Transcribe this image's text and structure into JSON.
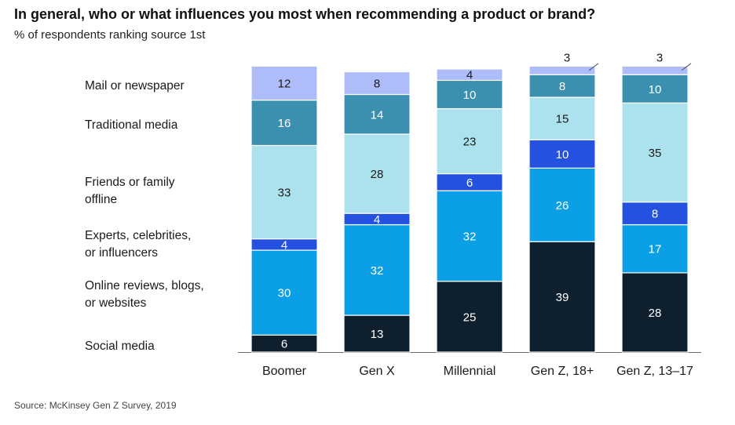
{
  "title": "In general, who or what influences you most when recommending a product or brand?",
  "subtitle": "% of respondents ranking source 1st",
  "source": "Source: McKinsey Gen Z Survey, 2019",
  "chart_data": {
    "type": "bar",
    "stacked": true,
    "orientation": "vertical",
    "title": "In general, who or what influences you most when recommending a product or brand?",
    "subtitle": "% of respondents ranking source 1st",
    "categories": [
      "Boomer",
      "Gen X",
      "Millennial",
      "Gen Z, 18+",
      "Gen Z, 13–17"
    ],
    "series": [
      {
        "name": "Social media",
        "color": "#0e1f2e",
        "values": [
          6,
          13,
          25,
          39,
          28
        ]
      },
      {
        "name": "Online reviews, blogs,\nor websites",
        "color": "#0ba0e6",
        "values": [
          30,
          32,
          32,
          26,
          17
        ]
      },
      {
        "name": "Experts, celebrities,\nor influencers",
        "color": "#2451e0",
        "values": [
          4,
          4,
          6,
          10,
          8
        ]
      },
      {
        "name": "Friends or family\noffline",
        "color": "#abe2ed",
        "values": [
          33,
          28,
          23,
          15,
          35
        ]
      },
      {
        "name": "Traditional media",
        "color": "#3b8faf",
        "values": [
          16,
          14,
          10,
          8,
          10
        ]
      },
      {
        "name": "Mail or newspaper",
        "color": "#aebcf9",
        "values": [
          12,
          8,
          4,
          3,
          3
        ]
      }
    ],
    "ylim": [
      0,
      100
    ],
    "grid": false,
    "legend": "left"
  }
}
